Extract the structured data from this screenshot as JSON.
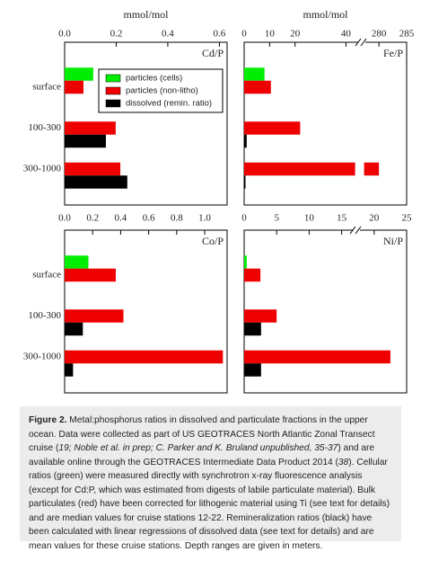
{
  "chart_data": [
    {
      "type": "bar",
      "orientation": "horizontal",
      "xlabel": "mmol/mol",
      "label": "Cd/P",
      "categories": [
        "surface",
        "100-300",
        "300-1000"
      ],
      "xlim": [
        0,
        0.63
      ],
      "xticks": [
        {
          "value": 0,
          "label": "0.0"
        },
        0.2,
        0.4,
        0.6
      ],
      "legend": "upper right",
      "series": [
        {
          "name": "particles (cells)",
          "color": "#00ee00",
          "values": [
            0.111,
            null,
            null
          ]
        },
        {
          "name": "particles (non-litho)",
          "color": "#ee0000",
          "values": [
            0.073,
            0.198,
            0.216
          ]
        },
        {
          "name": "dissolved (remin. ratio)",
          "color": "#000000",
          "values": [
            null,
            0.16,
            0.243
          ]
        }
      ]
    },
    {
      "type": "bar",
      "orientation": "horizontal",
      "xlabel": "mmol/mol",
      "label": "Fe/P",
      "xlim": [
        0,
        285
      ],
      "xbreak": [
        45,
        277
      ],
      "xticks": [
        0,
        10,
        20,
        40,
        280,
        285
      ],
      "series": [
        {
          "color": "#00ee00",
          "values": [
            8,
            null,
            null
          ]
        },
        {
          "color": "#ee0000",
          "values": [
            10.5,
            22,
            280
          ]
        },
        {
          "color": "#000000",
          "values": [
            null,
            1,
            0.5
          ]
        }
      ]
    },
    {
      "type": "bar",
      "orientation": "horizontal",
      "label": "Co/P",
      "categories": [
        "surface",
        "100-300",
        "300-1000"
      ],
      "xlim": [
        0,
        1.16
      ],
      "xticks": [
        {
          "value": 0,
          "label": "0.0"
        },
        0.2,
        0.4,
        0.6,
        0.8,
        {
          "value": 1,
          "label": "1.0"
        }
      ],
      "series": [
        {
          "color": "#00ee00",
          "values": [
            0.17,
            null,
            null
          ]
        },
        {
          "color": "#ee0000",
          "values": [
            0.365,
            0.42,
            1.13
          ]
        },
        {
          "color": "#000000",
          "values": [
            null,
            0.13,
            0.06
          ]
        }
      ]
    },
    {
      "type": "bar",
      "orientation": "horizontal",
      "label": "Ni/P",
      "xlim": [
        0,
        25
      ],
      "xticks": [
        0,
        5,
        10,
        15,
        20,
        25
      ],
      "series": [
        {
          "color": "#00ee00",
          "values": [
            0.4,
            null,
            null
          ]
        },
        {
          "color": "#ee0000",
          "values": [
            2.5,
            5,
            22.5
          ]
        },
        {
          "color": "#000000",
          "values": [
            null,
            2.6,
            2.6
          ]
        }
      ]
    }
  ],
  "caption": {
    "label": "Figure 2.",
    "parts": [
      " Metal:phosphorus ratios in dissolved and particulate fractions in the upper ocean. Data were collected as part of US GEOTRACES North Atlantic Zonal Transect cruise (",
      "19; Noble et al. in prep; C. Parker and K. Bruland unpublished, 35-37",
      ") and are available online through the GEOTRACES Intermediate Data Product 2014 (",
      "38",
      "). Cellular ratios (green) were measured directly with synchrotron x-ray fluorescence analysis (except for Cd:P, which was estimated from digests of labile particulate material). Bulk particulates (red) have been corrected for lithogenic material using Ti (see text for details) and are median values for cruise stations 12-22. Remineralization ratios (black) have been calculated with linear regressions of dissolved data (see text for details) and are mean values for these cruise stations. Depth ranges are given in meters."
    ]
  }
}
